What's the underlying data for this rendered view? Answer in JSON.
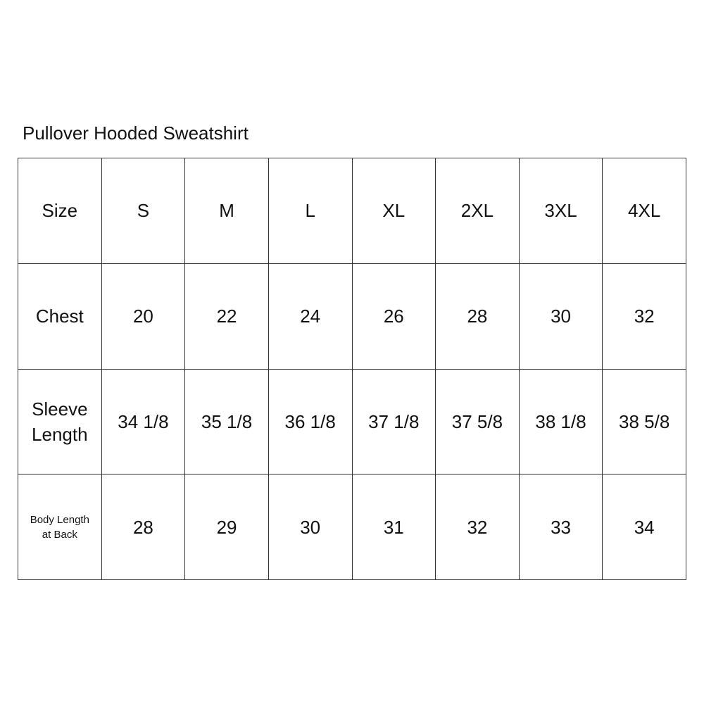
{
  "title": "Pullover Hooded Sweatshirt",
  "table": {
    "rows": [
      {
        "label": "Size",
        "values": [
          "S",
          "M",
          "L",
          "XL",
          "2XL",
          "3XL",
          "4XL"
        ]
      },
      {
        "label": "Chest",
        "values": [
          "20",
          "22",
          "24",
          "26",
          "28",
          "30",
          "32"
        ]
      },
      {
        "label": "Sleeve\nLength",
        "values": [
          "34 1/8",
          "35 1/8",
          "36 1/8",
          "37 1/8",
          "37 5/8",
          "38 1/8",
          "38 5/8"
        ]
      },
      {
        "label": "Body Length\nat Back",
        "values": [
          "28",
          "29",
          "30",
          "31",
          "32",
          "33",
          "34"
        ]
      }
    ]
  }
}
